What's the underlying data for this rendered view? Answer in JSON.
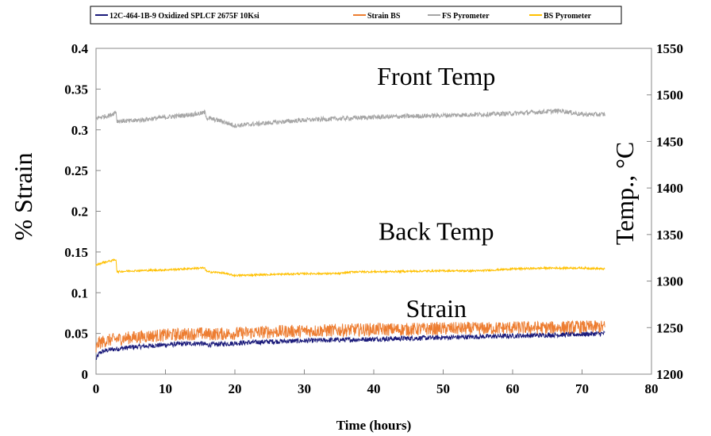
{
  "chart_data": {
    "type": "line",
    "xlabel": "Time (hours)",
    "ylabel_left": "% Strain",
    "ylabel_right": "Temp., °C",
    "xlim": [
      0,
      80
    ],
    "ylim_left": [
      0,
      0.4
    ],
    "ylim_right": [
      1200,
      1550
    ],
    "x_ticks": [
      "0",
      "10",
      "20",
      "30",
      "40",
      "50",
      "60",
      "70",
      "80"
    ],
    "y_left_ticks": [
      "0",
      "0.05",
      "0.1",
      "0.15",
      "0.2",
      "0.25",
      "0.3",
      "0.35",
      "0.4"
    ],
    "y_right_ticks": [
      "1200",
      "1250",
      "1300",
      "1350",
      "1400",
      "1450",
      "1500",
      "1550"
    ],
    "grid": false,
    "legend_position": "top",
    "annotations": [
      {
        "text": "Front Temp",
        "x": 49,
        "y": 0.355
      },
      {
        "text": "Back Temp",
        "x": 49,
        "y": 0.165
      },
      {
        "text": "Strain",
        "x": 49,
        "y": 0.07
      }
    ],
    "series": [
      {
        "name": "12C-464-1B-9 Oxidized SPLCF 2675F 10Ksi",
        "axis": "left",
        "color": "#1a1a7a",
        "noise": 0.003,
        "x": [
          0,
          0.5,
          1,
          2,
          3,
          5,
          8,
          10,
          12,
          15,
          16,
          18,
          20,
          25,
          30,
          35,
          40,
          45,
          50,
          55,
          60,
          65,
          70,
          73.3
        ],
        "y": [
          0.018,
          0.026,
          0.028,
          0.03,
          0.031,
          0.033,
          0.035,
          0.036,
          0.037,
          0.038,
          0.036,
          0.037,
          0.038,
          0.04,
          0.041,
          0.042,
          0.043,
          0.044,
          0.045,
          0.046,
          0.047,
          0.048,
          0.049,
          0.05
        ]
      },
      {
        "name": "Strain BS",
        "axis": "left",
        "color": "#ed7d31",
        "noise": 0.008,
        "x": [
          0,
          0.3,
          1,
          2,
          3,
          5,
          8,
          10,
          15,
          16,
          20,
          25,
          30,
          35,
          40,
          45,
          50,
          55,
          60,
          65,
          70,
          73.3
        ],
        "y": [
          0.03,
          0.038,
          0.04,
          0.042,
          0.043,
          0.045,
          0.047,
          0.048,
          0.05,
          0.049,
          0.05,
          0.052,
          0.053,
          0.054,
          0.055,
          0.055,
          0.056,
          0.056,
          0.057,
          0.057,
          0.058,
          0.058
        ]
      },
      {
        "name": "FS Pyrometer",
        "axis": "right",
        "color": "#a5a5a5",
        "noise": 2.5,
        "x": [
          0,
          2,
          2.9,
          3,
          5,
          10,
          15,
          15.7,
          16,
          18,
          20,
          25,
          30,
          40,
          50,
          60,
          67,
          70,
          73.3
        ],
        "y": [
          1475,
          1478,
          1482,
          1472,
          1472,
          1476,
          1480,
          1481,
          1475,
          1472,
          1467,
          1470,
          1473,
          1476,
          1478,
          1480,
          1483,
          1479,
          1479
        ]
      },
      {
        "name": "BS Pyrometer",
        "axis": "right",
        "color": "#ffc000",
        "noise": 1.0,
        "x": [
          0,
          1,
          2.9,
          3,
          5,
          10,
          15,
          15.6,
          16,
          18,
          20,
          25,
          30,
          35,
          37,
          40,
          50,
          55,
          60,
          65,
          70,
          73.3
        ],
        "y": [
          1317,
          1320,
          1323,
          1310,
          1311,
          1312,
          1314,
          1314,
          1310,
          1309,
          1306,
          1307,
          1308,
          1308,
          1310,
          1310,
          1311,
          1311,
          1313,
          1314,
          1314,
          1313
        ]
      }
    ]
  }
}
